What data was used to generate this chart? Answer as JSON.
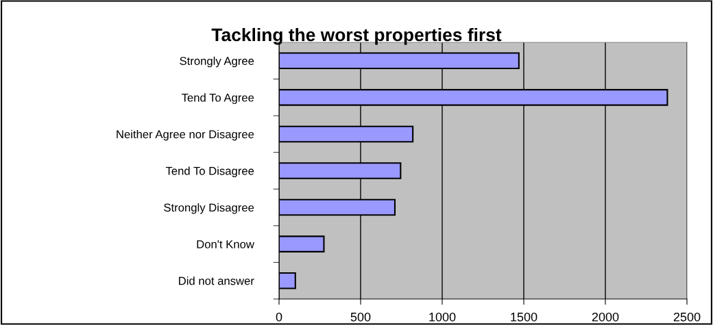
{
  "chart_data": {
    "type": "bar",
    "orientation": "horizontal",
    "title": "Tackling the worst properties first",
    "categories": [
      "Strongly Agree",
      "Tend To Agree",
      "Neither Agree nor Disagree",
      "Tend To Disagree",
      "Strongly Disagree",
      "Don't Know",
      "Did not answer"
    ],
    "values": [
      1470,
      2380,
      820,
      745,
      710,
      275,
      100
    ],
    "color": "#9999ff",
    "xlim": [
      0,
      2500
    ],
    "xticks": [
      0,
      500,
      1000,
      1500,
      2000,
      2500
    ],
    "grid": "x"
  }
}
